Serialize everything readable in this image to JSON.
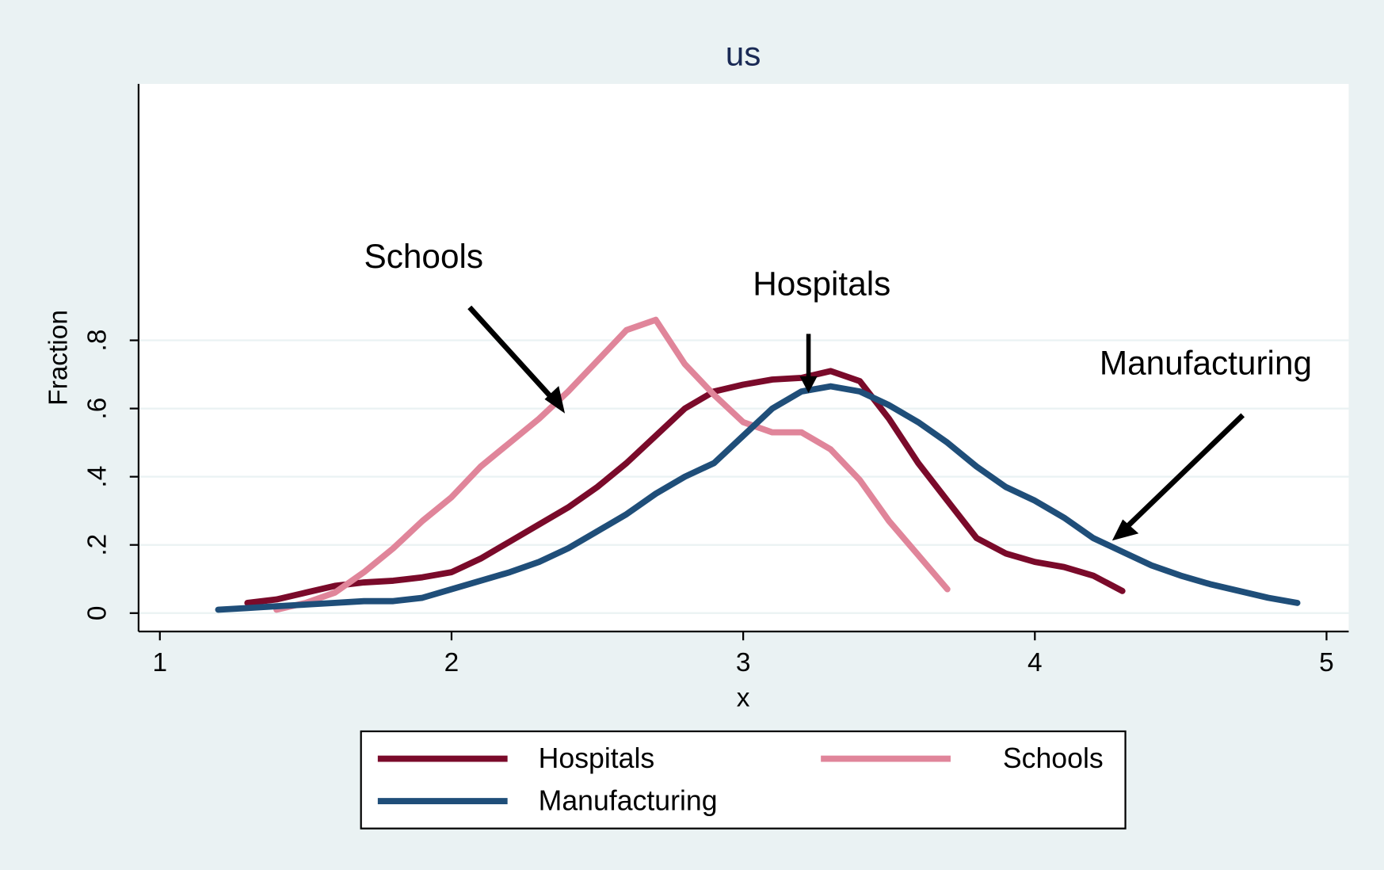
{
  "chart_data": {
    "type": "line",
    "title": "us",
    "xlabel": "x",
    "ylabel": "Fraction",
    "x": [
      1.2,
      1.3,
      1.4,
      1.5,
      1.6,
      1.7,
      1.8,
      1.9,
      2.0,
      2.1,
      2.2,
      2.3,
      2.4,
      2.5,
      2.6,
      2.7,
      2.8,
      2.9,
      3.0,
      3.1,
      3.2,
      3.3,
      3.4,
      3.5,
      3.6,
      3.7,
      3.8,
      3.9,
      4.0,
      4.1,
      4.2,
      4.3,
      4.4,
      4.5,
      4.6,
      4.7,
      4.8,
      4.9
    ],
    "series": [
      {
        "name": "Hospitals",
        "color": "#7a0a2a",
        "values": [
          null,
          0.03,
          0.04,
          0.06,
          0.08,
          0.09,
          0.095,
          0.105,
          0.12,
          0.16,
          0.21,
          0.26,
          0.31,
          0.37,
          0.44,
          0.52,
          0.6,
          0.65,
          0.67,
          0.685,
          0.69,
          0.71,
          0.68,
          0.57,
          0.44,
          0.33,
          0.22,
          0.175,
          0.15,
          0.135,
          0.11,
          0.065,
          null,
          null,
          null,
          null,
          null,
          null
        ]
      },
      {
        "name": "Schools",
        "color": "#e0859a",
        "values": [
          null,
          null,
          0.01,
          0.03,
          0.06,
          0.12,
          0.19,
          0.27,
          0.34,
          0.43,
          0.5,
          0.57,
          0.65,
          0.74,
          0.83,
          0.86,
          0.73,
          0.64,
          0.56,
          0.53,
          0.53,
          0.48,
          0.39,
          0.27,
          0.17,
          0.07,
          null,
          null,
          null,
          null,
          null,
          null,
          null,
          null,
          null,
          null,
          null,
          null
        ]
      },
      {
        "name": "Manufacturing",
        "color": "#1f4e79",
        "values": [
          0.01,
          0.015,
          0.02,
          0.025,
          0.03,
          0.035,
          0.035,
          0.045,
          0.07,
          0.095,
          0.12,
          0.15,
          0.19,
          0.24,
          0.29,
          0.35,
          0.4,
          0.44,
          0.52,
          0.6,
          0.65,
          0.665,
          0.65,
          0.61,
          0.56,
          0.5,
          0.43,
          0.37,
          0.33,
          0.28,
          0.22,
          0.18,
          0.14,
          0.11,
          0.085,
          0.065,
          0.045,
          0.03
        ]
      }
    ],
    "xlim": [
      0.927,
      5.076
    ],
    "xticks": [
      1,
      2,
      3,
      4,
      5
    ],
    "ylim": [
      -0.054,
      1.552
    ],
    "yticks": [
      0,
      {
        "value": 0.2,
        "label": ".2"
      },
      {
        "value": 0.4,
        "label": ".4"
      },
      {
        "value": 0.6,
        "label": ".6"
      },
      {
        "value": 0.8,
        "label": ".8"
      }
    ],
    "grid": true,
    "annotations": [
      "Schools",
      "Hospitals",
      "Manufacturing"
    ]
  }
}
